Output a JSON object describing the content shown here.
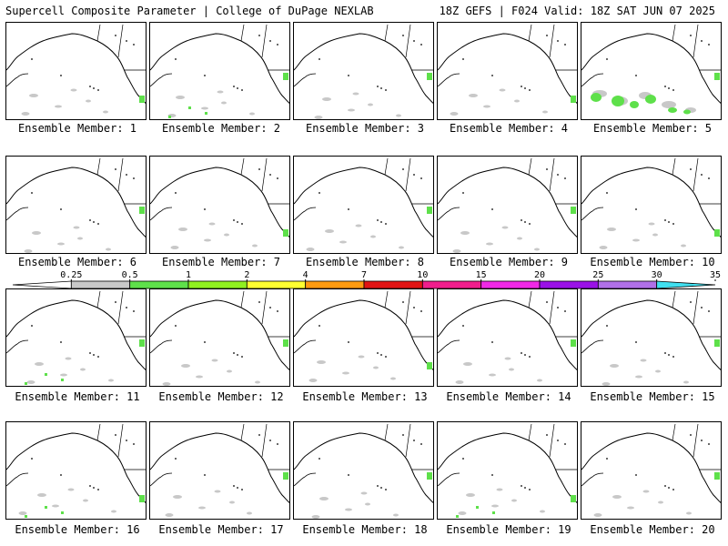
{
  "header": {
    "title_left": "Supercell Composite Parameter | College of DuPage NEXLAB",
    "title_right": "18Z GEFS | F024 Valid: 18Z SAT JUN 07 2025"
  },
  "members": [
    {
      "label": "Ensemble Member: 1",
      "precip": [
        "gray-sparse",
        "green-west-coast"
      ]
    },
    {
      "label": "Ensemble Member: 2",
      "precip": [
        "gray-sparse",
        "green-west-coast",
        "green-dots"
      ]
    },
    {
      "label": "Ensemble Member: 3",
      "precip": [
        "gray-sparse",
        "green-west-coast"
      ]
    },
    {
      "label": "Ensemble Member: 4",
      "precip": [
        "gray-sparse",
        "green-west-coast"
      ]
    },
    {
      "label": "Ensemble Member: 5",
      "precip": [
        "gray-large",
        "green-large",
        "green-west-coast"
      ]
    },
    {
      "label": "Ensemble Member: 6",
      "precip": [
        "gray-sparse",
        "green-west-coast"
      ]
    },
    {
      "label": "Ensemble Member: 7",
      "precip": [
        "gray-sparse",
        "green-west-coast"
      ]
    },
    {
      "label": "Ensemble Member: 8",
      "precip": [
        "gray-sparse",
        "green-west-coast"
      ]
    },
    {
      "label": "Ensemble Member: 9",
      "precip": [
        "gray-sparse",
        "green-west-coast"
      ]
    },
    {
      "label": "Ensemble Member: 10",
      "precip": [
        "gray-sparse",
        "green-west-coast"
      ]
    },
    {
      "label": "Ensemble Member: 11",
      "precip": [
        "gray-sparse",
        "green-west-coast",
        "green-dots"
      ]
    },
    {
      "label": "Ensemble Member: 12",
      "precip": [
        "gray-sparse",
        "green-west-coast"
      ]
    },
    {
      "label": "Ensemble Member: 13",
      "precip": [
        "gray-sparse",
        "green-west-coast"
      ]
    },
    {
      "label": "Ensemble Member: 14",
      "precip": [
        "gray-sparse",
        "green-west-coast"
      ]
    },
    {
      "label": "Ensemble Member: 15",
      "precip": [
        "gray-sparse",
        "green-west-coast"
      ]
    },
    {
      "label": "Ensemble Member: 16",
      "precip": [
        "gray-sparse",
        "green-west-coast",
        "green-dots"
      ]
    },
    {
      "label": "Ensemble Member: 17",
      "precip": [
        "gray-sparse",
        "green-west-coast"
      ]
    },
    {
      "label": "Ensemble Member: 18",
      "precip": [
        "gray-sparse",
        "green-west-coast"
      ]
    },
    {
      "label": "Ensemble Member: 19",
      "precip": [
        "gray-sparse",
        "green-west-coast",
        "green-dots"
      ]
    },
    {
      "label": "Ensemble Member: 20",
      "precip": [
        "gray-sparse",
        "green-west-coast"
      ]
    }
  ],
  "colorbar": {
    "ticks": [
      "0.25",
      "0.5",
      "1",
      "2",
      "4",
      "7",
      "10",
      "15",
      "20",
      "25",
      "30",
      "35"
    ],
    "colors": [
      "#ffffff",
      "#c8c8c8",
      "#5ee04a",
      "#90f020",
      "#ffff30",
      "#ff9a10",
      "#e01414",
      "#f01e8c",
      "#f028e6",
      "#9a12e6",
      "#b070e8",
      "#40e0f0"
    ]
  }
}
